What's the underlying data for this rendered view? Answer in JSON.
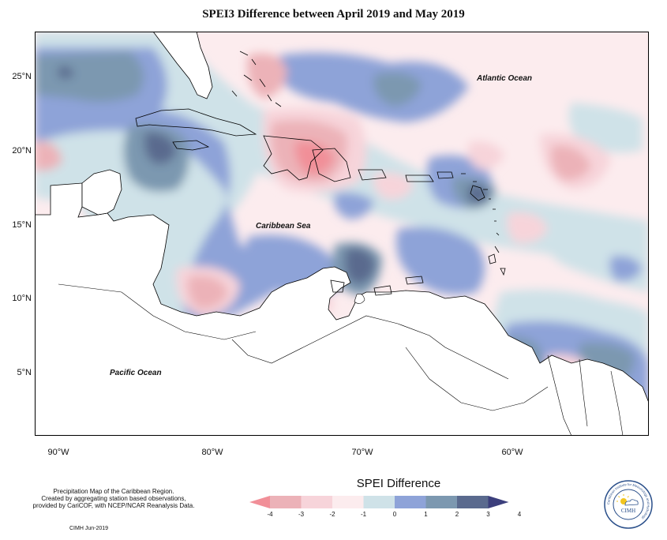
{
  "title": "SPEI3 Difference between April 2019 and May 2019",
  "ocean_labels": {
    "atlantic": "Atlantic Ocean",
    "caribbean": "Caribbean Sea",
    "pacific": "Pacific Ocean"
  },
  "axes": {
    "lat_ticks": [
      "25°N",
      "20°N",
      "15°N",
      "10°N",
      "5°N"
    ],
    "lon_ticks": [
      "90°W",
      "80°W",
      "70°W",
      "60°W"
    ]
  },
  "legend": {
    "title": "SPEI Difference",
    "labels": [
      "-4",
      "-3",
      "-2",
      "-1",
      "0",
      "1",
      "2",
      "3",
      "4"
    ],
    "colors": [
      "#f18f98",
      "#ecb2b8",
      "#f7d4da",
      "#fcecee",
      "#cfe2e8",
      "#8ea3d8",
      "#7c98b0",
      "#5a6a8e",
      "#3c3f7c"
    ]
  },
  "credit": {
    "lines": [
      "Precipitation Map of the Caribbean Region.",
      "Created by aggregating station based observations,",
      "provided by CariCOF, with NCEP/NCAR Reanalysis Data."
    ],
    "date": "CIMH  Jun-2019"
  },
  "logo": {
    "text": "CIMH",
    "ring_text": "Caribbean Institute for Meteorology and Hydrology"
  },
  "palette": {
    "strong_neg": "#f18f98",
    "neg": "#ecb2b8",
    "light_neg": "#f7d4da",
    "near_zero_neg": "#fcecee",
    "near_zero_pos": "#cfe2e8",
    "pos": "#8ea3d8",
    "strong_pos": "#7c98b0",
    "very_strong_pos": "#5a6a8e",
    "extreme_pos": "#3c3f7c"
  }
}
